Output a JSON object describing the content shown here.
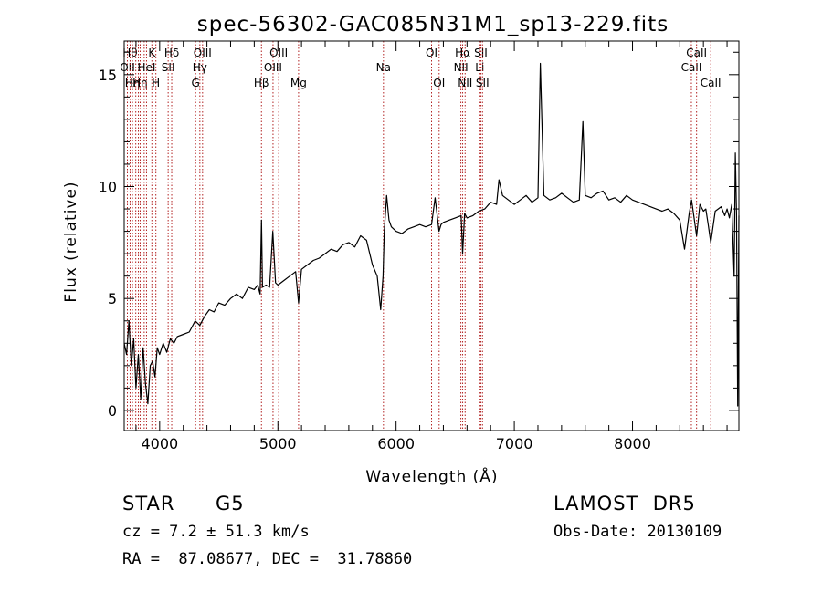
{
  "chart_data": {
    "type": "line",
    "title": "spec-56302-GAC085N31M1_sp13-229.fits",
    "xlabel": "Wavelength (Å)",
    "ylabel": "Flux (relative)",
    "xlim": [
      3700,
      8900
    ],
    "ylim": [
      -0.9,
      16.5
    ],
    "xticks": [
      4000,
      5000,
      6000,
      7000,
      8000
    ],
    "yticks": [
      0,
      5,
      10,
      15
    ],
    "grid": false,
    "series": [
      {
        "x": [
          3700,
          3720,
          3740,
          3760,
          3780,
          3800,
          3820,
          3840,
          3860,
          3880,
          3900,
          3920,
          3940,
          3960,
          3980,
          4000,
          4030,
          4060,
          4090,
          4120,
          4150,
          4200,
          4250,
          4300,
          4340,
          4380,
          4420,
          4460,
          4500,
          4550,
          4600,
          4650,
          4700,
          4750,
          4800,
          4830,
          4850,
          4861,
          4870,
          4900,
          4930,
          4957,
          4980,
          5000,
          5050,
          5100,
          5150,
          5175,
          5200,
          5250,
          5300,
          5350,
          5400,
          5450,
          5500,
          5550,
          5600,
          5650,
          5700,
          5750,
          5800,
          5840,
          5870,
          5890,
          5896,
          5900,
          5920,
          5940,
          5960,
          6000,
          6050,
          6100,
          6150,
          6200,
          6250,
          6300,
          6330,
          6363,
          6380,
          6400,
          6450,
          6500,
          6550,
          6563,
          6580,
          6600,
          6650,
          6700,
          6750,
          6800,
          6850,
          6870,
          6900,
          6950,
          7000,
          7050,
          7100,
          7150,
          7200,
          7220,
          7250,
          7300,
          7350,
          7400,
          7450,
          7500,
          7550,
          7580,
          7600,
          7650,
          7700,
          7750,
          7800,
          7850,
          7900,
          7950,
          8000,
          8050,
          8100,
          8150,
          8200,
          8250,
          8300,
          8350,
          8400,
          8440,
          8480,
          8500,
          8542,
          8570,
          8600,
          8620,
          8640,
          8662,
          8700,
          8750,
          8780,
          8800,
          8820,
          8840,
          8860,
          8870,
          8880,
          8890,
          8900
        ],
        "y": [
          3.0,
          2.5,
          4.0,
          2.0,
          3.2,
          1.0,
          2.5,
          0.5,
          2.8,
          1.2,
          0.3,
          2.0,
          2.2,
          1.5,
          2.8,
          2.5,
          3.0,
          2.6,
          3.2,
          3.0,
          3.3,
          3.4,
          3.5,
          4.0,
          3.8,
          4.2,
          4.5,
          4.4,
          4.8,
          4.7,
          5.0,
          5.2,
          5.0,
          5.5,
          5.4,
          5.6,
          5.2,
          8.5,
          5.5,
          5.6,
          5.5,
          8.0,
          5.7,
          5.6,
          5.8,
          6.0,
          6.2,
          4.8,
          6.3,
          6.5,
          6.7,
          6.8,
          7.0,
          7.2,
          7.1,
          7.4,
          7.5,
          7.3,
          7.8,
          7.6,
          6.5,
          6.0,
          4.5,
          6.0,
          7.2,
          8.0,
          9.6,
          8.5,
          8.2,
          8.0,
          7.9,
          8.1,
          8.2,
          8.3,
          8.2,
          8.3,
          9.5,
          8.0,
          8.3,
          8.4,
          8.5,
          8.6,
          8.7,
          7.0,
          8.8,
          8.6,
          8.7,
          8.9,
          9.0,
          9.3,
          9.2,
          10.3,
          9.6,
          9.4,
          9.2,
          9.4,
          9.6,
          9.3,
          9.5,
          15.5,
          9.6,
          9.4,
          9.5,
          9.7,
          9.5,
          9.3,
          9.4,
          12.9,
          9.6,
          9.5,
          9.7,
          9.8,
          9.4,
          9.5,
          9.3,
          9.6,
          9.4,
          9.3,
          9.2,
          9.1,
          9.0,
          8.9,
          9.0,
          8.8,
          8.5,
          7.2,
          8.8,
          9.4,
          7.8,
          9.2,
          8.9,
          9.0,
          8.3,
          7.5,
          8.9,
          9.1,
          8.7,
          9.0,
          8.6,
          9.2,
          6.0,
          11.5,
          8.8,
          0.2,
          8.7
        ]
      }
    ],
    "lines": [
      {
        "x": 3727,
        "label": "OII",
        "row": 2
      },
      {
        "x": 3750,
        "label": "Hθ",
        "row": 1
      },
      {
        "x": 3770,
        "label": "Hη",
        "row": 3
      },
      {
        "x": 3798,
        "label": "",
        "row": 0
      },
      {
        "x": 3820,
        "label": "",
        "row": 0
      },
      {
        "x": 3835,
        "label": "Hη",
        "row": 3
      },
      {
        "x": 3869,
        "label": "",
        "row": 0
      },
      {
        "x": 3889,
        "label": "HeI",
        "row": 2
      },
      {
        "x": 3934,
        "label": "K",
        "row": 1
      },
      {
        "x": 3968,
        "label": "H",
        "row": 3
      },
      {
        "x": 4072,
        "label": "SII",
        "row": 2
      },
      {
        "x": 4102,
        "label": "Hδ",
        "row": 1
      },
      {
        "x": 4304,
        "label": "G",
        "row": 3
      },
      {
        "x": 4340,
        "label": "Hγ",
        "row": 2
      },
      {
        "x": 4363,
        "label": "OIII",
        "row": 1
      },
      {
        "x": 4861,
        "label": "Hβ",
        "row": 3
      },
      {
        "x": 4959,
        "label": "OIII",
        "row": 2
      },
      {
        "x": 5007,
        "label": "OIII",
        "row": 1
      },
      {
        "x": 5175,
        "label": "Mg",
        "row": 3
      },
      {
        "x": 5893,
        "label": "Na",
        "row": 2
      },
      {
        "x": 6300,
        "label": "OI",
        "row": 1
      },
      {
        "x": 6364,
        "label": "OI",
        "row": 3
      },
      {
        "x": 6548,
        "label": "NII",
        "row": 2
      },
      {
        "x": 6563,
        "label": "Hα",
        "row": 1
      },
      {
        "x": 6584,
        "label": "NII",
        "row": 3
      },
      {
        "x": 6708,
        "label": "Li",
        "row": 2
      },
      {
        "x": 6717,
        "label": "SII",
        "row": 1
      },
      {
        "x": 6731,
        "label": "SII",
        "row": 3
      },
      {
        "x": 8498,
        "label": "CaII",
        "row": 2
      },
      {
        "x": 8542,
        "label": "CaII",
        "row": 1
      },
      {
        "x": 8662,
        "label": "CaII",
        "row": 3
      }
    ],
    "line_color": "#b22222"
  },
  "info": {
    "object_class": "STAR",
    "subclass": "G5",
    "survey": "LAMOST  DR5",
    "redshift": "cz = 7.2 ± 51.3 km/s",
    "obs_date": "Obs-Date: 20130109",
    "coords": "RA =  87.08677, DEC =  31.78860"
  }
}
